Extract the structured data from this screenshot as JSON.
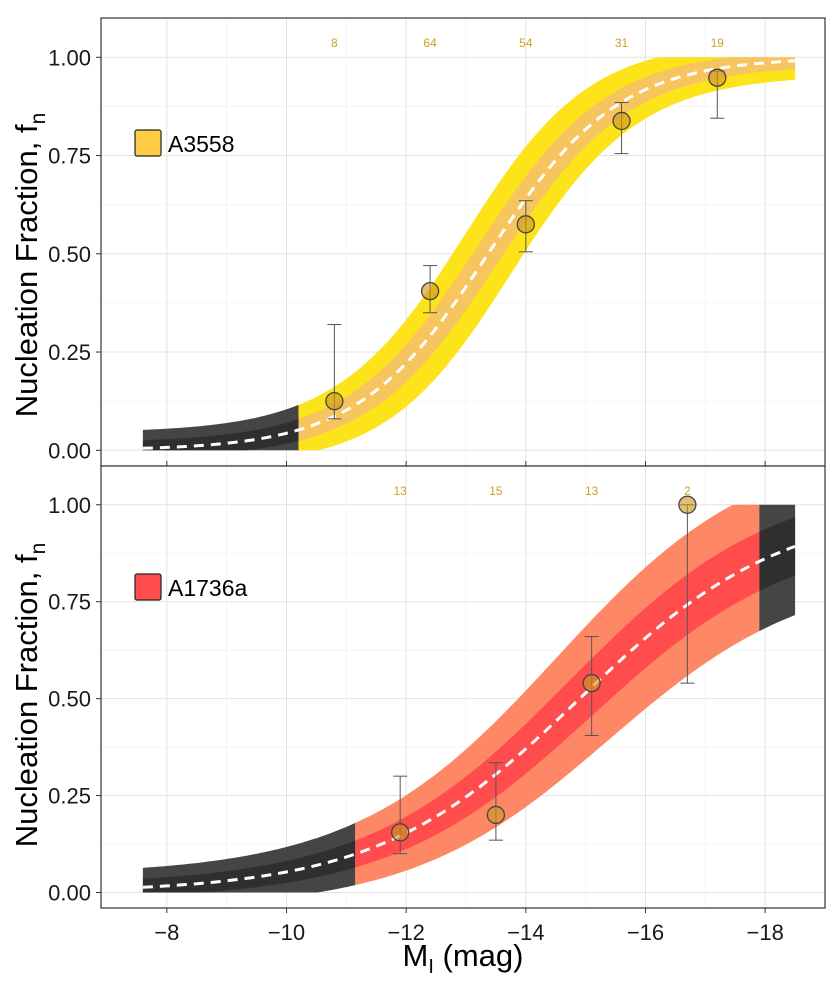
{
  "chart_data": [
    {
      "type": "line",
      "panel": "top",
      "legend_label": "A3558",
      "legend_color": "#ffcc44",
      "ylabel": "Nucleation Fraction, f",
      "ylabel_sub": "n",
      "ylim": [
        -0.04,
        1.1
      ],
      "yticks": [
        0.0,
        0.25,
        0.5,
        0.75,
        1.0
      ],
      "ytick_labels": [
        "0.00",
        "0.25",
        "0.50",
        "0.75",
        "1.00"
      ],
      "fit": {
        "mu": -13.37,
        "scale": 1.09
      },
      "x_range": [
        -7.6,
        -18.5
      ],
      "data_range": [
        -10.2,
        -18.5
      ],
      "outer_color": "#fde31a",
      "inner_color": "#f6c560",
      "outside_color": "#454545",
      "points": [
        {
          "x": -10.8,
          "y": 0.125,
          "lo": 0.08,
          "hi": 0.32,
          "n": "8"
        },
        {
          "x": -12.4,
          "y": 0.405,
          "lo": 0.35,
          "hi": 0.47,
          "n": "64"
        },
        {
          "x": -14.0,
          "y": 0.575,
          "lo": 0.505,
          "hi": 0.635,
          "n": "54"
        },
        {
          "x": -15.6,
          "y": 0.838,
          "lo": 0.755,
          "hi": 0.885,
          "n": "31"
        },
        {
          "x": -17.2,
          "y": 0.948,
          "lo": 0.845,
          "hi": 0.965,
          "n": "19"
        }
      ]
    },
    {
      "type": "line",
      "panel": "bottom",
      "legend_label": "A1736a",
      "legend_color": "#ff4d4d",
      "ylabel": "Nucleation Fraction, f",
      "ylabel_sub": "n",
      "ylim": [
        -0.04,
        1.1
      ],
      "yticks": [
        0.0,
        0.25,
        0.5,
        0.75,
        1.0
      ],
      "ytick_labels": [
        "0.00",
        "0.25",
        "0.50",
        "0.75",
        "1.00"
      ],
      "fit": {
        "mu": -14.9,
        "scale": 1.7
      },
      "x_range": [
        -7.6,
        -18.5
      ],
      "data_range": [
        -11.15,
        -17.9
      ],
      "outer_color": "#fe8866",
      "inner_color": "#ff4d4d",
      "outside_color": "#454545",
      "points": [
        {
          "x": -11.9,
          "y": 0.155,
          "lo": 0.1,
          "hi": 0.3,
          "n": "13"
        },
        {
          "x": -13.5,
          "y": 0.2,
          "lo": 0.135,
          "hi": 0.335,
          "n": "15"
        },
        {
          "x": -15.1,
          "y": 0.54,
          "lo": 0.405,
          "hi": 0.66,
          "n": "13"
        },
        {
          "x": -16.7,
          "y": 1.0,
          "lo": 0.54,
          "hi": 1.0,
          "n": "2"
        }
      ]
    }
  ],
  "x_axis": {
    "label": "M",
    "label_sub": "I",
    "label_suffix": " (mag)",
    "xlim": [
      -6.9,
      -19.0
    ],
    "ticks": [
      -8,
      -10,
      -12,
      -14,
      -16,
      -18
    ],
    "tick_labels": [
      "−8",
      "−10",
      "−12",
      "−14",
      "−16",
      "−18"
    ]
  }
}
